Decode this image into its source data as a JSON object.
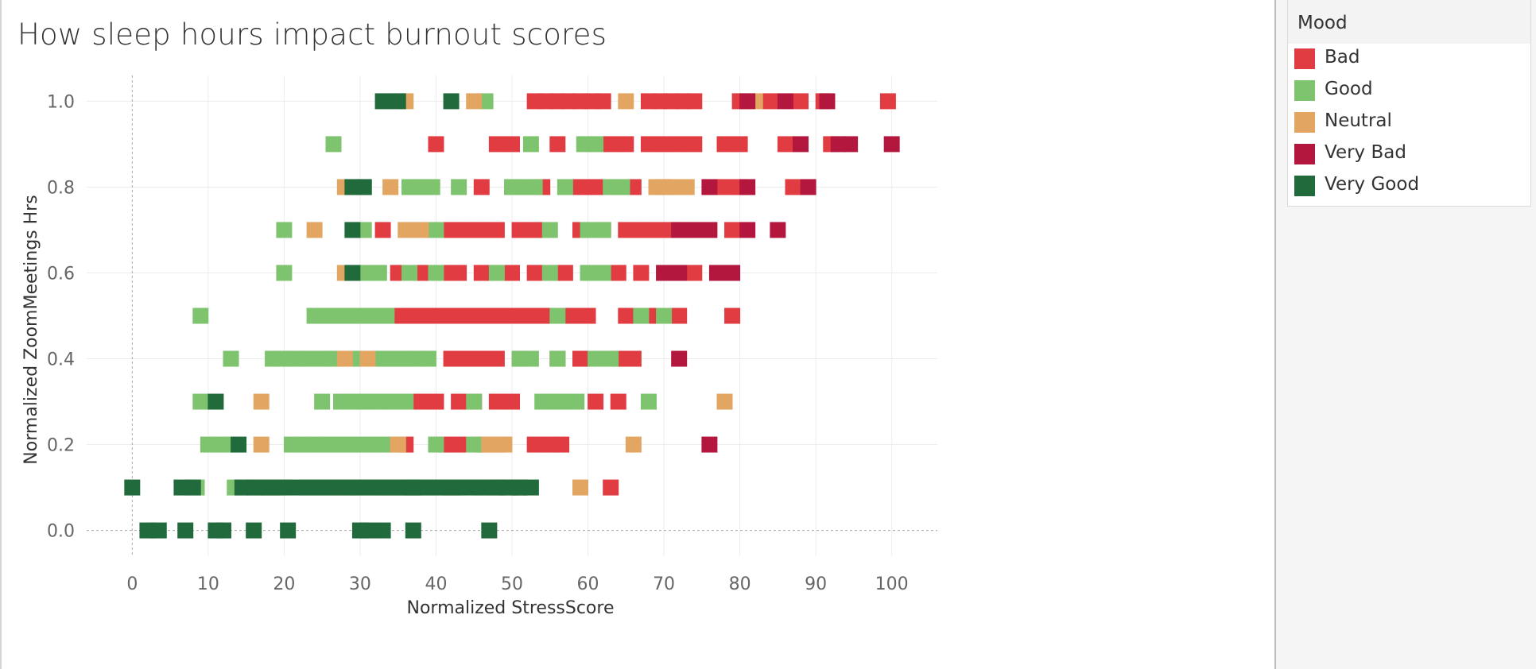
{
  "title": "How sleep hours impact burnout scores",
  "legend": {
    "title": "Mood",
    "items": [
      {
        "label": "Bad",
        "color": "#e13c42"
      },
      {
        "label": "Good",
        "color": "#7ec36e"
      },
      {
        "label": "Neutral",
        "color": "#e3a562"
      },
      {
        "label": "Very Bad",
        "color": "#b4173d"
      },
      {
        "label": "Very Good",
        "color": "#216a3c"
      }
    ]
  },
  "chart_data": {
    "type": "scatter",
    "title": "How sleep hours impact burnout scores",
    "xlabel": "Normalized StressScore",
    "ylabel": "Normalized ZoomMeetings Hrs",
    "xlim": [
      -6,
      106
    ],
    "ylim": [
      -0.06,
      1.06
    ],
    "xticks": [
      0,
      10,
      20,
      30,
      40,
      50,
      60,
      70,
      80,
      90,
      100
    ],
    "yticks": [
      0.0,
      0.2,
      0.4,
      0.6,
      0.8,
      1.0
    ],
    "xtick_labels": [
      "0",
      "10",
      "20",
      "30",
      "40",
      "50",
      "60",
      "70",
      "80",
      "90",
      "100"
    ],
    "ytick_labels": [
      "0.0",
      "0.2",
      "0.4",
      "0.6",
      "0.8",
      "1.0"
    ],
    "grid": true,
    "marker": "square",
    "legend_position": "right",
    "series": [
      {
        "name": "Bad",
        "color": "#e13c42",
        "points": [
          [
            53,
            1
          ],
          [
            54.5,
            1
          ],
          [
            56,
            1
          ],
          [
            57.5,
            1
          ],
          [
            59,
            1
          ],
          [
            60.5,
            1
          ],
          [
            62,
            1
          ],
          [
            68,
            1
          ],
          [
            69.5,
            1
          ],
          [
            71,
            1
          ],
          [
            72.5,
            1
          ],
          [
            74,
            1
          ],
          [
            80,
            1
          ],
          [
            84,
            1
          ],
          [
            88,
            1
          ],
          [
            91,
            1
          ],
          [
            99.5,
            1
          ],
          [
            40,
            0.9
          ],
          [
            48,
            0.9
          ],
          [
            50,
            0.9
          ],
          [
            56,
            0.9
          ],
          [
            63,
            0.9
          ],
          [
            65,
            0.9
          ],
          [
            68,
            0.9
          ],
          [
            70,
            0.9
          ],
          [
            72,
            0.9
          ],
          [
            74,
            0.9
          ],
          [
            78,
            0.9
          ],
          [
            80,
            0.9
          ],
          [
            86,
            0.9
          ],
          [
            92,
            0.9
          ],
          [
            46,
            0.8
          ],
          [
            54,
            0.8
          ],
          [
            59,
            0.8
          ],
          [
            61,
            0.8
          ],
          [
            66,
            0.8
          ],
          [
            70,
            0.8
          ],
          [
            78,
            0.8
          ],
          [
            80,
            0.8
          ],
          [
            87,
            0.8
          ],
          [
            33,
            0.7
          ],
          [
            42,
            0.7
          ],
          [
            44,
            0.7
          ],
          [
            46,
            0.7
          ],
          [
            48,
            0.7
          ],
          [
            51,
            0.7
          ],
          [
            53,
            0.7
          ],
          [
            59,
            0.7
          ],
          [
            62,
            0.7
          ],
          [
            65,
            0.7
          ],
          [
            67,
            0.7
          ],
          [
            69,
            0.7
          ],
          [
            71,
            0.7
          ],
          [
            79,
            0.7
          ],
          [
            35,
            0.6
          ],
          [
            38,
            0.6
          ],
          [
            41,
            0.6
          ],
          [
            43,
            0.6
          ],
          [
            46,
            0.6
          ],
          [
            48,
            0.6
          ],
          [
            50,
            0.6
          ],
          [
            53,
            0.6
          ],
          [
            55,
            0.6
          ],
          [
            57,
            0.6
          ],
          [
            64,
            0.6
          ],
          [
            67,
            0.6
          ],
          [
            74,
            0.6
          ],
          [
            35,
            0.5
          ],
          [
            37,
            0.5
          ],
          [
            39,
            0.5
          ],
          [
            41,
            0.5
          ],
          [
            43,
            0.5
          ],
          [
            45,
            0.5
          ],
          [
            47,
            0.5
          ],
          [
            49,
            0.5
          ],
          [
            51,
            0.5
          ],
          [
            53,
            0.5
          ],
          [
            55,
            0.5
          ],
          [
            58,
            0.5
          ],
          [
            60,
            0.5
          ],
          [
            65,
            0.5
          ],
          [
            69,
            0.5
          ],
          [
            72,
            0.5
          ],
          [
            79,
            0.5
          ],
          [
            42,
            0.4
          ],
          [
            44,
            0.4
          ],
          [
            46,
            0.4
          ],
          [
            48,
            0.4
          ],
          [
            51,
            0.4
          ],
          [
            56,
            0.4
          ],
          [
            59,
            0.4
          ],
          [
            64,
            0.4
          ],
          [
            66,
            0.4
          ],
          [
            38,
            0.3
          ],
          [
            40,
            0.3
          ],
          [
            43,
            0.3
          ],
          [
            45,
            0.3
          ],
          [
            48,
            0.3
          ],
          [
            50,
            0.3
          ],
          [
            61,
            0.3
          ],
          [
            64,
            0.3
          ],
          [
            36,
            0.2
          ],
          [
            41,
            0.2
          ],
          [
            43,
            0.2
          ],
          [
            46,
            0.2
          ],
          [
            48,
            0.2
          ],
          [
            53,
            0.2
          ],
          [
            55,
            0.2
          ],
          [
            56.5,
            0.2
          ],
          [
            42,
            0.1
          ],
          [
            48,
            0.1
          ],
          [
            51,
            0.1
          ],
          [
            63,
            0.1
          ]
        ]
      },
      {
        "name": "Good",
        "color": "#7ec36e",
        "points": [
          [
            46.5,
            1
          ],
          [
            26.5,
            0.9
          ],
          [
            52.5,
            0.9
          ],
          [
            59.5,
            0.9
          ],
          [
            61,
            0.9
          ],
          [
            30.5,
            0.8
          ],
          [
            36.5,
            0.8
          ],
          [
            38,
            0.8
          ],
          [
            39.5,
            0.8
          ],
          [
            43,
            0.8
          ],
          [
            50,
            0.8
          ],
          [
            51.5,
            0.8
          ],
          [
            53,
            0.8
          ],
          [
            57,
            0.8
          ],
          [
            63,
            0.8
          ],
          [
            64.5,
            0.8
          ],
          [
            20,
            0.7
          ],
          [
            30.5,
            0.7
          ],
          [
            40,
            0.7
          ],
          [
            55,
            0.7
          ],
          [
            60,
            0.7
          ],
          [
            62,
            0.7
          ],
          [
            73,
            0.7
          ],
          [
            20,
            0.6
          ],
          [
            31,
            0.6
          ],
          [
            32.5,
            0.6
          ],
          [
            36.5,
            0.6
          ],
          [
            40,
            0.6
          ],
          [
            48,
            0.6
          ],
          [
            55,
            0.6
          ],
          [
            60,
            0.6
          ],
          [
            62,
            0.6
          ],
          [
            9,
            0.5
          ],
          [
            24,
            0.5
          ],
          [
            25.5,
            0.5
          ],
          [
            27,
            0.5
          ],
          [
            29,
            0.5
          ],
          [
            30.5,
            0.5
          ],
          [
            32,
            0.5
          ],
          [
            33.5,
            0.5
          ],
          [
            56,
            0.5
          ],
          [
            67,
            0.5
          ],
          [
            70,
            0.5
          ],
          [
            13,
            0.4
          ],
          [
            18.5,
            0.4
          ],
          [
            20,
            0.4
          ],
          [
            21.5,
            0.4
          ],
          [
            23,
            0.4
          ],
          [
            25,
            0.4
          ],
          [
            26.5,
            0.4
          ],
          [
            28,
            0.4
          ],
          [
            30,
            0.4
          ],
          [
            33,
            0.4
          ],
          [
            34.5,
            0.4
          ],
          [
            36,
            0.4
          ],
          [
            37.5,
            0.4
          ],
          [
            39,
            0.4
          ],
          [
            51,
            0.4
          ],
          [
            52.5,
            0.4
          ],
          [
            56,
            0.4
          ],
          [
            61,
            0.4
          ],
          [
            63,
            0.4
          ],
          [
            9,
            0.3
          ],
          [
            25,
            0.3
          ],
          [
            27.5,
            0.3
          ],
          [
            29.5,
            0.3
          ],
          [
            31,
            0.3
          ],
          [
            32.5,
            0.3
          ],
          [
            34,
            0.3
          ],
          [
            36,
            0.3
          ],
          [
            45,
            0.3
          ],
          [
            54,
            0.3
          ],
          [
            55.5,
            0.3
          ],
          [
            57,
            0.3
          ],
          [
            58.5,
            0.3
          ],
          [
            68,
            0.3
          ],
          [
            10,
            0.2
          ],
          [
            11.5,
            0.2
          ],
          [
            13,
            0.2
          ],
          [
            21,
            0.2
          ],
          [
            22.5,
            0.2
          ],
          [
            24,
            0.2
          ],
          [
            25.5,
            0.2
          ],
          [
            27,
            0.2
          ],
          [
            28.5,
            0.2
          ],
          [
            30,
            0.2
          ],
          [
            32,
            0.2
          ],
          [
            33.5,
            0.2
          ],
          [
            35,
            0.2
          ],
          [
            40,
            0.2
          ],
          [
            45,
            0.2
          ],
          [
            8.5,
            0.1
          ],
          [
            13.5,
            0.1
          ],
          [
            16.5,
            0.1
          ],
          [
            18,
            0.1
          ],
          [
            19.5,
            0.1
          ],
          [
            23,
            0.1
          ],
          [
            25,
            0.1
          ],
          [
            29,
            0.1
          ],
          [
            31,
            0.1
          ],
          [
            33,
            0.1
          ],
          [
            35,
            0.1
          ],
          [
            37,
            0.1
          ],
          [
            39,
            0.1
          ],
          [
            41,
            0.1
          ],
          [
            43,
            0.1
          ],
          [
            46,
            0.1
          ],
          [
            50,
            0.1
          ]
        ]
      },
      {
        "name": "Neutral",
        "color": "#e3a562",
        "points": [
          [
            36,
            1
          ],
          [
            45,
            1
          ],
          [
            65,
            1
          ],
          [
            82,
            1
          ],
          [
            28,
            0.8
          ],
          [
            34,
            0.8
          ],
          [
            69,
            0.8
          ],
          [
            71,
            0.8
          ],
          [
            73,
            0.8
          ],
          [
            24,
            0.7
          ],
          [
            36,
            0.7
          ],
          [
            38,
            0.7
          ],
          [
            28,
            0.6
          ],
          [
            28,
            0.4
          ],
          [
            31,
            0.4
          ],
          [
            17,
            0.3
          ],
          [
            78,
            0.3
          ],
          [
            17,
            0.2
          ],
          [
            35,
            0.2
          ],
          [
            47,
            0.2
          ],
          [
            49,
            0.2
          ],
          [
            66,
            0.2
          ],
          [
            17.5,
            0.1
          ],
          [
            19,
            0.1
          ],
          [
            27,
            0.1
          ],
          [
            29,
            0.1
          ],
          [
            33,
            0.1
          ],
          [
            35,
            0.1
          ],
          [
            51,
            0.1
          ],
          [
            59,
            0.1
          ]
        ]
      },
      {
        "name": "Very Bad",
        "color": "#b4173d",
        "points": [
          [
            81,
            1
          ],
          [
            86,
            1
          ],
          [
            91.5,
            1
          ],
          [
            88,
            0.9
          ],
          [
            93,
            0.9
          ],
          [
            94.5,
            0.9
          ],
          [
            100,
            0.9
          ],
          [
            76,
            0.8
          ],
          [
            81,
            0.8
          ],
          [
            89,
            0.8
          ],
          [
            72,
            0.7
          ],
          [
            74,
            0.7
          ],
          [
            76,
            0.7
          ],
          [
            81,
            0.7
          ],
          [
            85,
            0.7
          ],
          [
            70,
            0.6
          ],
          [
            72,
            0.6
          ],
          [
            77,
            0.6
          ],
          [
            79,
            0.6
          ],
          [
            72,
            0.4
          ],
          [
            76,
            0.2
          ]
        ]
      },
      {
        "name": "Very Good",
        "color": "#216a3c",
        "points": [
          [
            33,
            1
          ],
          [
            35,
            1
          ],
          [
            42,
            1
          ],
          [
            29,
            0.8
          ],
          [
            30.5,
            0.8
          ],
          [
            29,
            0.7
          ],
          [
            29,
            0.6
          ],
          [
            11,
            0.3
          ],
          [
            14,
            0.2
          ],
          [
            0,
            0.1
          ],
          [
            6.5,
            0.1
          ],
          [
            8,
            0.1
          ],
          [
            14.5,
            0.1
          ],
          [
            16,
            0.1
          ],
          [
            18,
            0.1
          ],
          [
            20,
            0.1
          ],
          [
            22,
            0.1
          ],
          [
            24,
            0.1
          ],
          [
            26,
            0.1
          ],
          [
            28,
            0.1
          ],
          [
            30,
            0.1
          ],
          [
            32,
            0.1
          ],
          [
            34,
            0.1
          ],
          [
            36,
            0.1
          ],
          [
            37,
            0.1
          ],
          [
            38,
            0.1
          ],
          [
            40,
            0.1
          ],
          [
            42,
            0.1
          ],
          [
            44,
            0.1
          ],
          [
            46,
            0.1
          ],
          [
            48,
            0.1
          ],
          [
            49.5,
            0.1
          ],
          [
            51,
            0.1
          ],
          [
            52.5,
            0.1
          ],
          [
            2,
            0
          ],
          [
            3.5,
            0
          ],
          [
            7,
            0
          ],
          [
            11,
            0
          ],
          [
            12,
            0
          ],
          [
            16,
            0
          ],
          [
            20.5,
            0
          ],
          [
            30,
            0
          ],
          [
            31,
            0
          ],
          [
            33,
            0
          ],
          [
            37,
            0
          ],
          [
            47,
            0
          ]
        ]
      }
    ]
  }
}
